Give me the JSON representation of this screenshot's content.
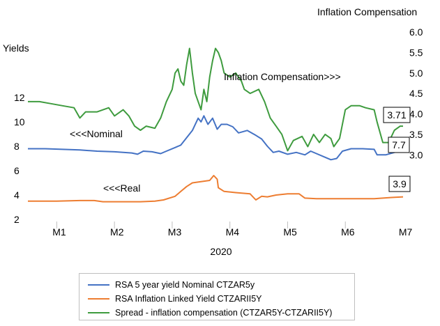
{
  "chart_data": {
    "type": "line",
    "x_label": "2020",
    "x_ticks": [
      "M1",
      "M2",
      "M3",
      "M4",
      "M5",
      "M6",
      "M7"
    ],
    "left_axis": {
      "title": "Yields",
      "ticks": [
        "2",
        "4",
        "6",
        "8",
        "10",
        "12"
      ],
      "min": 2,
      "max": 14
    },
    "right_axis": {
      "title": "Inflation Compensation",
      "ticks": [
        "3.0",
        "3.5",
        "4.0",
        "4.5",
        "5.0",
        "5.5",
        "6.0"
      ],
      "min": 2.0,
      "max": 6.0
    },
    "x_range": [
      0,
      6.5
    ],
    "annotations": {
      "nominal": "<<<Nominal",
      "real": "<<<Real",
      "inflation": "Inflation Compensation>>>"
    },
    "end_labels": {
      "spread": "3.71",
      "nominal": "7.7",
      "real": "3.9"
    },
    "series": [
      {
        "name": "RSA 5 year yield Nominal CTZAR5y",
        "axis": "left",
        "color": "#4472C4",
        "points": [
          [
            0,
            7.8
          ],
          [
            0.3,
            7.8
          ],
          [
            0.6,
            7.75
          ],
          [
            0.9,
            7.7
          ],
          [
            1.2,
            7.6
          ],
          [
            1.5,
            7.55
          ],
          [
            1.8,
            7.45
          ],
          [
            1.9,
            7.35
          ],
          [
            2.0,
            7.6
          ],
          [
            2.15,
            7.55
          ],
          [
            2.3,
            7.4
          ],
          [
            2.4,
            7.6
          ],
          [
            2.55,
            7.9
          ],
          [
            2.65,
            8.1
          ],
          [
            2.75,
            8.7
          ],
          [
            2.85,
            9.3
          ],
          [
            2.95,
            10.3
          ],
          [
            3.0,
            10.0
          ],
          [
            3.05,
            10.5
          ],
          [
            3.12,
            9.8
          ],
          [
            3.2,
            10.3
          ],
          [
            3.28,
            9.4
          ],
          [
            3.35,
            9.8
          ],
          [
            3.45,
            9.8
          ],
          [
            3.55,
            9.6
          ],
          [
            3.65,
            9.1
          ],
          [
            3.8,
            9.3
          ],
          [
            3.95,
            8.9
          ],
          [
            4.05,
            8.6
          ],
          [
            4.15,
            8.0
          ],
          [
            4.25,
            7.5
          ],
          [
            4.35,
            7.6
          ],
          [
            4.5,
            7.35
          ],
          [
            4.65,
            7.5
          ],
          [
            4.8,
            7.3
          ],
          [
            4.9,
            7.6
          ],
          [
            5.0,
            7.4
          ],
          [
            5.15,
            7.1
          ],
          [
            5.25,
            6.9
          ],
          [
            5.35,
            7.0
          ],
          [
            5.45,
            7.6
          ],
          [
            5.6,
            7.8
          ],
          [
            5.8,
            7.8
          ],
          [
            6.0,
            7.75
          ],
          [
            6.05,
            7.3
          ],
          [
            6.2,
            7.3
          ],
          [
            6.35,
            7.5
          ],
          [
            6.45,
            7.65
          ],
          [
            6.5,
            7.7
          ]
        ]
      },
      {
        "name": "RSA Inflation Linked Yield CTZARII5Y",
        "axis": "left",
        "color": "#ED7D31",
        "points": [
          [
            0,
            3.5
          ],
          [
            0.5,
            3.5
          ],
          [
            0.9,
            3.55
          ],
          [
            1.15,
            3.55
          ],
          [
            1.3,
            3.45
          ],
          [
            1.6,
            3.45
          ],
          [
            1.95,
            3.45
          ],
          [
            2.2,
            3.5
          ],
          [
            2.35,
            3.6
          ],
          [
            2.55,
            3.9
          ],
          [
            2.65,
            4.3
          ],
          [
            2.75,
            4.7
          ],
          [
            2.85,
            5.0
          ],
          [
            3.0,
            5.1
          ],
          [
            3.15,
            5.2
          ],
          [
            3.22,
            5.6
          ],
          [
            3.28,
            5.3
          ],
          [
            3.3,
            4.6
          ],
          [
            3.4,
            4.3
          ],
          [
            3.6,
            4.2
          ],
          [
            3.85,
            4.1
          ],
          [
            3.95,
            3.6
          ],
          [
            4.05,
            3.9
          ],
          [
            4.15,
            3.85
          ],
          [
            4.3,
            4.0
          ],
          [
            4.5,
            4.1
          ],
          [
            4.7,
            4.1
          ],
          [
            4.8,
            3.75
          ],
          [
            5.0,
            3.7
          ],
          [
            5.3,
            3.7
          ],
          [
            5.7,
            3.7
          ],
          [
            6.0,
            3.7
          ],
          [
            6.3,
            3.8
          ],
          [
            6.5,
            3.85
          ]
        ]
      },
      {
        "name": "Spread - inflation compensation (CTZAR5Y-CTZARII5Y)",
        "axis": "right",
        "color": "#3E9B3E",
        "points": [
          [
            0,
            4.3
          ],
          [
            0.2,
            4.3
          ],
          [
            0.4,
            4.25
          ],
          [
            0.6,
            4.2
          ],
          [
            0.8,
            4.15
          ],
          [
            0.9,
            3.9
          ],
          [
            1.0,
            4.05
          ],
          [
            1.2,
            4.05
          ],
          [
            1.4,
            4.15
          ],
          [
            1.5,
            3.95
          ],
          [
            1.65,
            4.1
          ],
          [
            1.75,
            3.95
          ],
          [
            1.85,
            3.7
          ],
          [
            1.95,
            3.6
          ],
          [
            2.05,
            3.7
          ],
          [
            2.2,
            3.65
          ],
          [
            2.3,
            3.9
          ],
          [
            2.4,
            4.3
          ],
          [
            2.5,
            4.6
          ],
          [
            2.55,
            5.0
          ],
          [
            2.6,
            5.1
          ],
          [
            2.65,
            4.8
          ],
          [
            2.7,
            4.7
          ],
          [
            2.75,
            5.2
          ],
          [
            2.8,
            5.6
          ],
          [
            2.85,
            5.0
          ],
          [
            2.9,
            4.5
          ],
          [
            2.95,
            4.3
          ],
          [
            3.0,
            4.1
          ],
          [
            3.05,
            4.6
          ],
          [
            3.1,
            4.3
          ],
          [
            3.15,
            4.9
          ],
          [
            3.2,
            5.3
          ],
          [
            3.25,
            5.6
          ],
          [
            3.3,
            5.5
          ],
          [
            3.35,
            5.3
          ],
          [
            3.4,
            5.0
          ],
          [
            3.5,
            4.9
          ],
          [
            3.6,
            5.0
          ],
          [
            3.7,
            4.8
          ],
          [
            3.75,
            4.6
          ],
          [
            3.85,
            4.5
          ],
          [
            4.0,
            4.6
          ],
          [
            4.1,
            4.3
          ],
          [
            4.2,
            3.9
          ],
          [
            4.3,
            3.7
          ],
          [
            4.4,
            3.5
          ],
          [
            4.5,
            3.1
          ],
          [
            4.6,
            3.35
          ],
          [
            4.75,
            3.45
          ],
          [
            4.85,
            3.2
          ],
          [
            4.95,
            3.5
          ],
          [
            5.05,
            3.3
          ],
          [
            5.15,
            3.5
          ],
          [
            5.25,
            3.4
          ],
          [
            5.3,
            3.2
          ],
          [
            5.4,
            3.4
          ],
          [
            5.5,
            4.1
          ],
          [
            5.6,
            4.2
          ],
          [
            5.75,
            4.2
          ],
          [
            5.85,
            4.15
          ],
          [
            6.0,
            4.1
          ],
          [
            6.05,
            3.8
          ],
          [
            6.15,
            3.3
          ],
          [
            6.25,
            3.3
          ],
          [
            6.35,
            3.6
          ],
          [
            6.45,
            3.7
          ],
          [
            6.5,
            3.7
          ]
        ]
      }
    ]
  }
}
